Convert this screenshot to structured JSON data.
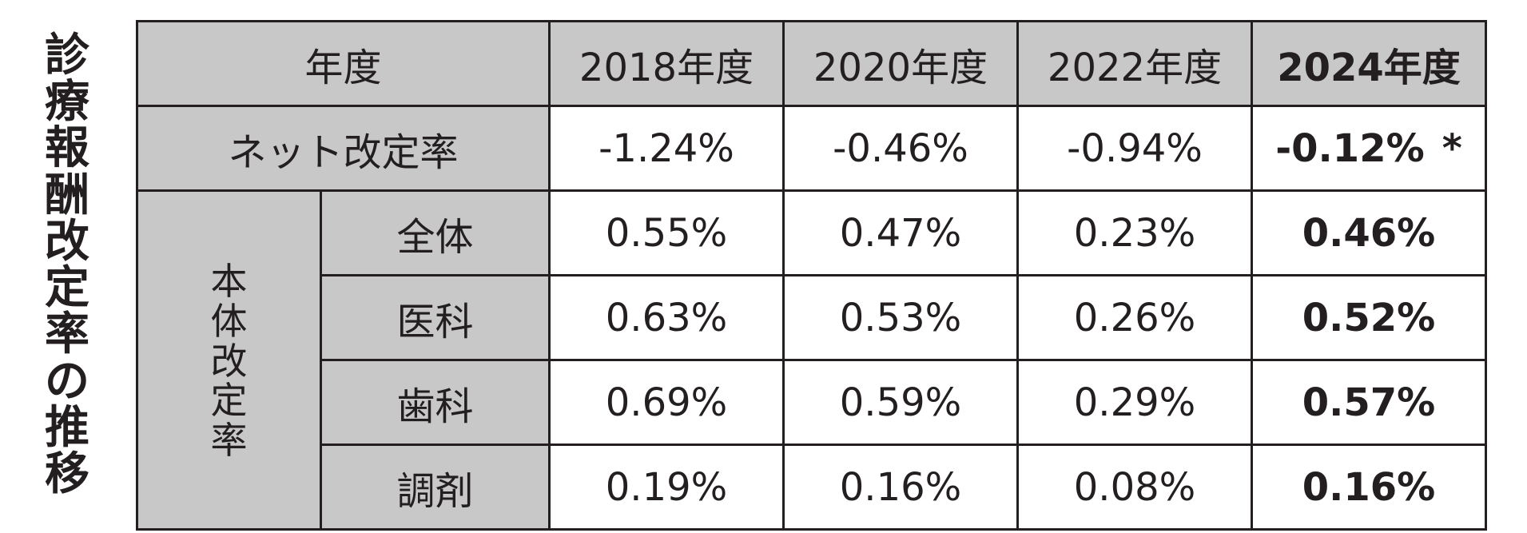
{
  "side_title_chars": [
    "診",
    "療",
    "報",
    "酬",
    "改",
    "定",
    "率",
    "の",
    "推",
    "移"
  ],
  "colors": {
    "header_fill": "#c8c8c9",
    "text": "#231f20",
    "background": "#ffffff"
  },
  "chart_data": {
    "type": "table",
    "title": "診療報酬改定率の推移",
    "corner_header": "年度",
    "columns": [
      "2018年度",
      "2020年度",
      "2022年度",
      "2024年度"
    ],
    "net_row": {
      "label": "ネット改定率",
      "values": [
        "-1.24%",
        "-0.46%",
        "-0.94%",
        "-0.12%"
      ],
      "note_mark": "*"
    },
    "group": {
      "label_chars": [
        "本",
        "体",
        "改",
        "定",
        "率"
      ],
      "rows": [
        {
          "label": "全体",
          "values": [
            "0.55%",
            "0.47%",
            "0.23%",
            "0.46%"
          ]
        },
        {
          "label": "医科",
          "values": [
            "0.63%",
            "0.53%",
            "0.26%",
            "0.52%"
          ]
        },
        {
          "label": "歯科",
          "values": [
            "0.69%",
            "0.59%",
            "0.29%",
            "0.57%"
          ]
        },
        {
          "label": "調剤",
          "values": [
            "0.19%",
            "0.16%",
            "0.08%",
            "0.16%"
          ]
        }
      ]
    }
  }
}
